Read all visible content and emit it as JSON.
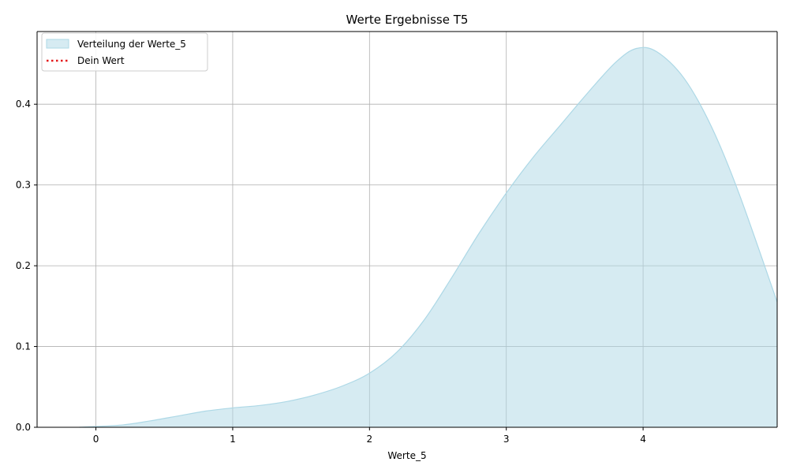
{
  "chart_data": {
    "type": "area",
    "title": "Werte Ergebnisse T5",
    "xlabel": "Werte_5",
    "ylabel": "",
    "xlim": [
      -0.43,
      4.98
    ],
    "ylim": [
      0,
      0.49
    ],
    "xticks": [
      0,
      1,
      2,
      3,
      4
    ],
    "yticks": [
      0.0,
      0.1,
      0.2,
      0.3,
      0.4
    ],
    "xtick_labels": [
      "0",
      "1",
      "2",
      "3",
      "4"
    ],
    "ytick_labels": [
      "0.0",
      "0.1",
      "0.2",
      "0.3",
      "0.4"
    ],
    "grid": true,
    "legend_position": "top-left",
    "series": [
      {
        "name": "Verteilung der Werte_5",
        "kind": "filled-density",
        "fill_color": "#add8e6",
        "x": [
          -0.12,
          0.0,
          0.2,
          0.4,
          0.6,
          0.8,
          1.0,
          1.2,
          1.4,
          1.6,
          1.8,
          2.0,
          2.2,
          2.4,
          2.6,
          2.8,
          3.0,
          3.2,
          3.4,
          3.6,
          3.8,
          3.95,
          4.1,
          4.3,
          4.5,
          4.7,
          4.98
        ],
        "values": [
          0.0,
          0.001,
          0.003,
          0.008,
          0.014,
          0.02,
          0.024,
          0.027,
          0.032,
          0.04,
          0.051,
          0.067,
          0.093,
          0.133,
          0.185,
          0.24,
          0.29,
          0.335,
          0.375,
          0.415,
          0.452,
          0.469,
          0.465,
          0.432,
          0.372,
          0.29,
          0.155
        ]
      },
      {
        "name": "Dein Wert",
        "kind": "vertical-marker",
        "line_color": "#e41a1c",
        "line_style": "dotted"
      }
    ]
  }
}
